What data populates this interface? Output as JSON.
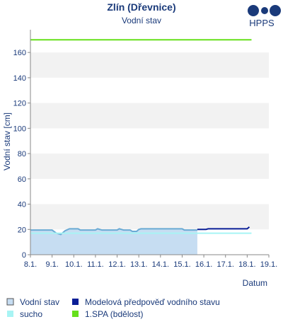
{
  "chart_data": {
    "type": "line",
    "title": "Zlín (Dřevnice)",
    "subtitle": "Vodní stav",
    "logo": "HPPS",
    "ylabel": "Vodní stav [cm]",
    "xlabel": "Datum",
    "xlim": [
      8,
      19
    ],
    "xticks": [
      {
        "value": 8,
        "label": "8.1."
      },
      {
        "value": 9,
        "label": "9.1."
      },
      {
        "value": 10,
        "label": "10.1."
      },
      {
        "value": 11,
        "label": "11.1."
      },
      {
        "value": 12,
        "label": "12.1."
      },
      {
        "value": 13,
        "label": "13.1."
      },
      {
        "value": 14,
        "label": "14.1."
      },
      {
        "value": 15,
        "label": "15.1."
      },
      {
        "value": 16,
        "label": "16.1."
      },
      {
        "value": 17,
        "label": "17.1."
      },
      {
        "value": 18,
        "label": "18.1."
      },
      {
        "value": 19,
        "label": "19.1."
      }
    ],
    "ylim": [
      0,
      178
    ],
    "yticks": [
      0,
      20,
      40,
      60,
      80,
      100,
      120,
      140,
      160
    ],
    "bands": true,
    "series": [
      {
        "name": "Vodní stav",
        "color": "#6aaad4",
        "fill": "#c6ddf2",
        "x": [
          8.0,
          9.0,
          9.2,
          9.4,
          9.6,
          9.8,
          10.2,
          10.3,
          11.0,
          11.1,
          11.3,
          12.0,
          12.1,
          12.3,
          12.6,
          12.7,
          12.9,
          13.0,
          13.1,
          15.0,
          15.1,
          15.7
        ],
        "values": [
          19.5,
          19.5,
          17,
          16,
          19,
          20.5,
          20.5,
          19.5,
          19.5,
          20.5,
          19.5,
          19.5,
          20.5,
          19.5,
          19.5,
          18.5,
          18.5,
          20,
          20.5,
          20.5,
          19.5,
          19.5
        ]
      },
      {
        "name": "Modelová předpověď vodního stavu",
        "color": "#0a1e96",
        "x": [
          15.7,
          16.1,
          16.2,
          18.0,
          18.1
        ],
        "values": [
          20,
          20,
          20.5,
          20.5,
          22
        ]
      },
      {
        "name": "sucho",
        "color": "#a8f4f4",
        "x": [
          8.0,
          18.2
        ],
        "values": [
          17,
          17
        ]
      },
      {
        "name": "1.SPA (bdělost)",
        "color": "#66e01a",
        "x": [
          8.0,
          18.2
        ],
        "values": [
          170,
          170
        ]
      }
    ]
  }
}
